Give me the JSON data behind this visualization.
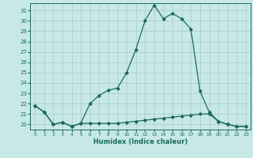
{
  "title": "",
  "xlabel": "Humidex (Indice chaleur)",
  "background_color": "#c8e8e8",
  "grid_color": "#aacece",
  "line_color": "#1a6b5a",
  "xlim": [
    -0.5,
    23.5
  ],
  "ylim": [
    19.5,
    31.7
  ],
  "xticks": [
    0,
    1,
    2,
    3,
    4,
    5,
    6,
    7,
    8,
    9,
    10,
    11,
    12,
    13,
    14,
    15,
    16,
    17,
    18,
    19,
    20,
    21,
    22,
    23
  ],
  "yticks": [
    20,
    21,
    22,
    23,
    24,
    25,
    26,
    27,
    28,
    29,
    30,
    31
  ],
  "series1_y": [
    21.8,
    21.2,
    20.0,
    20.2,
    19.8,
    20.1,
    20.1,
    20.1,
    20.1,
    20.1,
    20.2,
    20.3,
    20.4,
    20.5,
    20.6,
    20.7,
    20.8,
    20.9,
    21.0,
    21.0,
    20.3,
    20.0,
    19.8,
    19.8
  ],
  "series2_y": [
    21.8,
    21.2,
    20.0,
    20.2,
    19.8,
    20.1,
    22.0,
    22.8,
    23.3,
    23.5,
    25.0,
    27.2,
    30.0,
    31.5,
    30.2,
    30.7,
    30.2,
    29.2,
    23.2,
    21.2,
    20.3,
    20.0,
    19.8,
    19.8
  ]
}
